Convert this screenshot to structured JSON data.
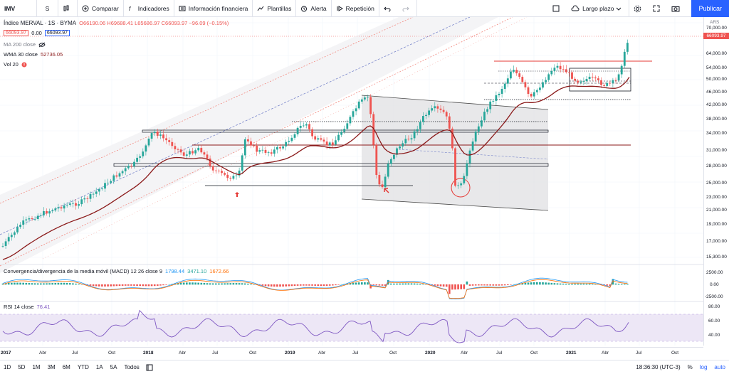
{
  "toolbar": {
    "symbol": "IMV",
    "interval": "S",
    "compare": "Comparar",
    "indicators": "Indicadores",
    "financial": "Información financiera",
    "templates": "Plantillas",
    "alert": "Alerta",
    "replay": "Repetición",
    "layout": "Largo plazo",
    "publish": "Publicar"
  },
  "legend": {
    "title": "Índice MERVAL · 1S · BYMA",
    "ohlc": "O66190.06 H69688.41 L65686.97 C66093.97 −96.09 (−0.15%)",
    "bid": "66093.97",
    "spread": "0.00",
    "ask": "66093.97",
    "ma": "MA 200 close",
    "wma": "WMA 30 close",
    "wma_value": "52736.05",
    "vol": "Vol 20"
  },
  "macd": {
    "label": "Convergencia/divergencia de la media móvil (MACD) 12 26 close 9",
    "v1": "1798.44",
    "v2": "3471.10",
    "v3": "1672.66"
  },
  "rsi": {
    "label": "RSI 14 close",
    "value": "76.41"
  },
  "price_axis": {
    "currency": "ARS",
    "last_price": "66093.97",
    "ticks": [
      "70,000.00",
      "64,000.00",
      "58,000.00",
      "54,000.00",
      "50,000.00",
      "46,000.00",
      "42,000.00",
      "38,000.00",
      "34,000.00",
      "31,000.00",
      "28,000.00",
      "25,000.00",
      "23,000.00",
      "21,000.00",
      "19,000.00",
      "17,000.00",
      "15,300.00"
    ]
  },
  "macd_axis": {
    "ticks": [
      "2500.00",
      "0.00",
      "-2500.00"
    ]
  },
  "rsi_axis": {
    "ticks": [
      "80.00",
      "60.00",
      "40.00"
    ]
  },
  "time_axis": {
    "ticks": [
      "2017",
      "Abr",
      "Jul",
      "Oct",
      "2018",
      "Abr",
      "Jul",
      "Oct",
      "2019",
      "Abr",
      "Jul",
      "Oct",
      "2020",
      "Abr",
      "Jul",
      "Oct",
      "2021",
      "Abr",
      "Jul",
      "Oct"
    ]
  },
  "bottom": {
    "ranges": [
      "1D",
      "5D",
      "1M",
      "3M",
      "6M",
      "YTD",
      "1A",
      "5A",
      "Todos"
    ],
    "clock": "18:36:30 (UTC-3)",
    "percent": "%",
    "log": "log",
    "auto": "auto"
  },
  "colors": {
    "up": "#26a69a",
    "down": "#ef5350",
    "wma": "#8b1a1a",
    "accent": "#2962ff"
  }
}
